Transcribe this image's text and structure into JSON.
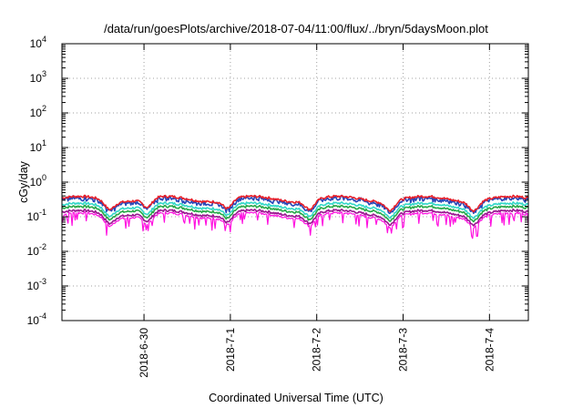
{
  "chart_data": {
    "type": "line",
    "title": "/data/run/goesPlots/archive/2018-07-04/11:00/flux/../bryn/5daysMoon.plot",
    "xlabel": "Coordinated Universal Time (UTC)",
    "ylabel": "cGy/day",
    "yscale": "log",
    "ylim_exponents": [
      -4,
      4
    ],
    "y_tick_base": "10",
    "y_tick_exponents": [
      "-4",
      "-3",
      "-2",
      "-1",
      "0",
      "1",
      "2",
      "3",
      "4"
    ],
    "xlim_days": [
      -0.95,
      4.45
    ],
    "x_ticks": [
      "2018-6-30",
      "2018-7-1",
      "2018-7-2",
      "2018-7-3",
      "2018-7-4"
    ],
    "grid": true,
    "legend": "none",
    "colors": {
      "red": "#e8202a",
      "blue": "#2646b8",
      "cyan": "#33d8c8",
      "green": "#28a848",
      "magenta": "#ff10e0",
      "purple": "#9a1490"
    },
    "series_base_levels": {
      "red": 0.33,
      "blue": 0.28,
      "cyan": 0.21,
      "green": 0.17,
      "purple": 0.13,
      "magenta": 0.11
    },
    "dip_centers_days": [
      -0.4,
      0.04,
      0.97,
      1.92,
      2.85,
      3.82
    ]
  }
}
